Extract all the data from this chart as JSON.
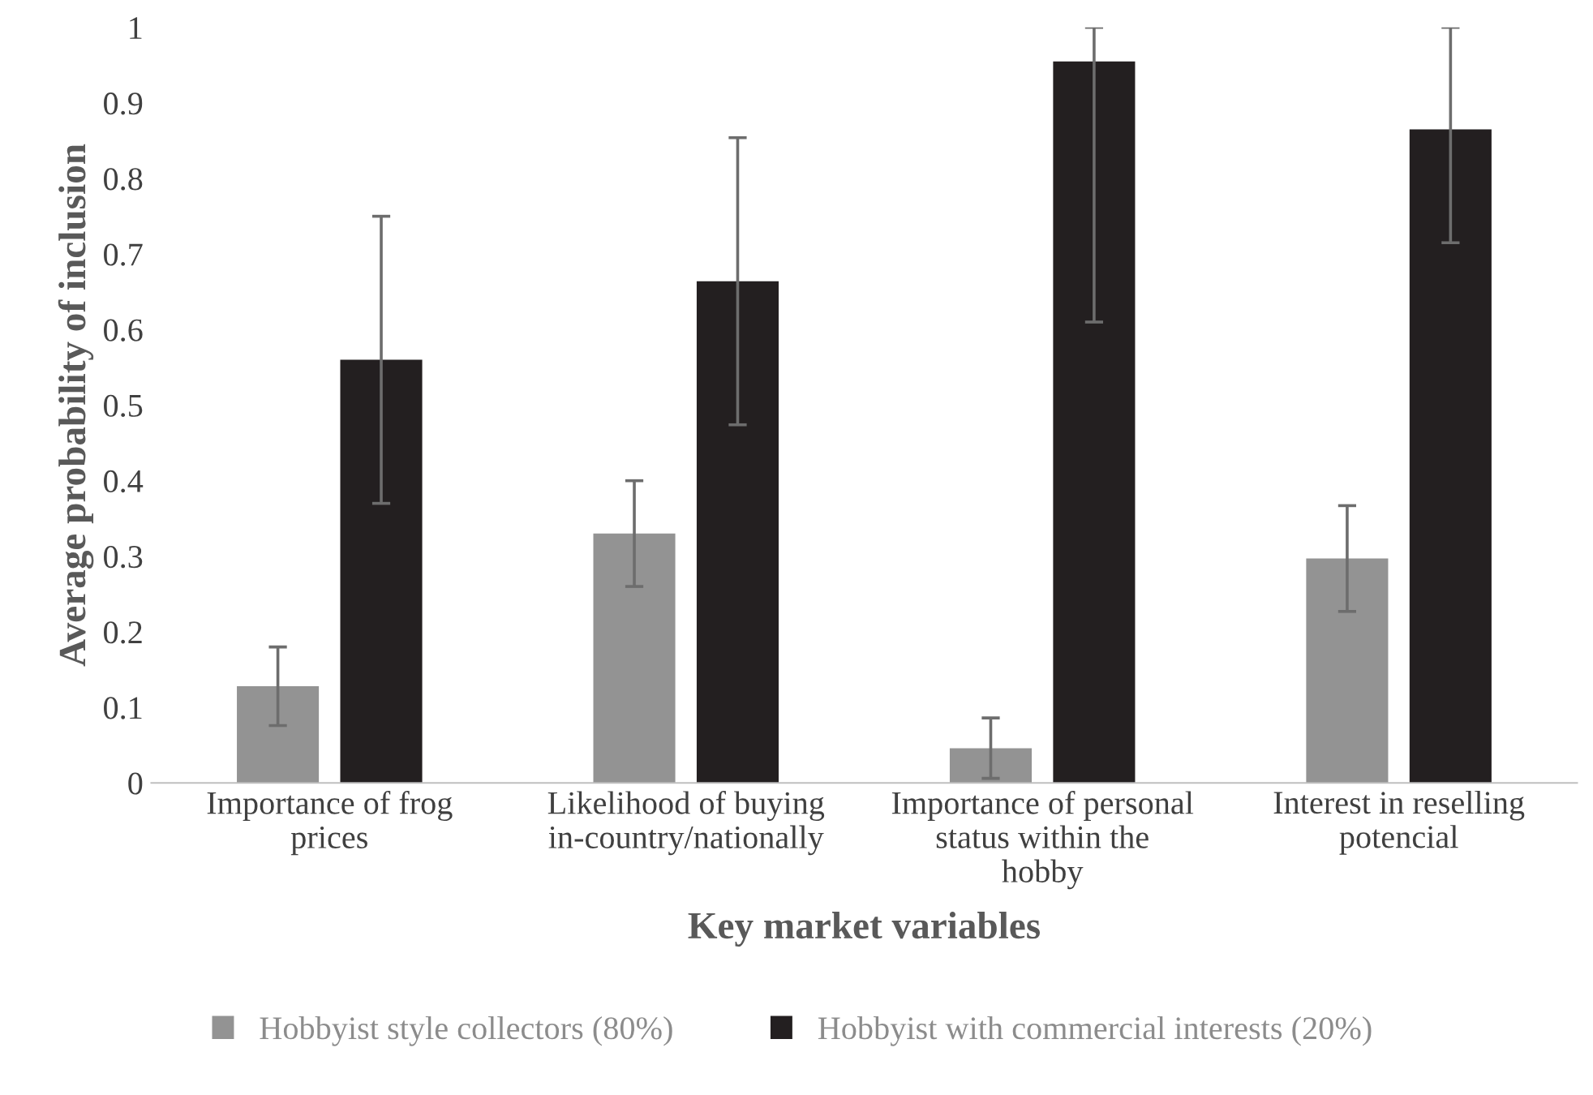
{
  "chart_data": {
    "type": "bar",
    "categories": [
      "Importance of frog\nprices",
      "Likelihood of buying\nin-country/nationally",
      "Importance of personal\nstatus within the\nhobby",
      "Interest in reselling\npotencial"
    ],
    "xlabel": "Key market variables",
    "ylabel": "Average probability of inclusion",
    "ylim": [
      0,
      1
    ],
    "yticks": [
      0,
      0.1,
      0.2,
      0.3,
      0.4,
      0.5,
      0.6,
      0.7,
      0.8,
      0.9,
      1
    ],
    "series": [
      {
        "name": "Hobbyist style collectors (80%)",
        "color": "#939393",
        "values": [
          0.128,
          0.33,
          0.046,
          0.297
        ],
        "errors": [
          0.052,
          0.07,
          0.04,
          0.07
        ]
      },
      {
        "name": "Hobbyist with commercial interests (20%)",
        "color": "#231f20",
        "values": [
          0.56,
          0.664,
          0.955,
          0.865
        ],
        "errors": [
          0.19,
          0.19,
          [
            0.61,
            1.0
          ],
          [
            0.715,
            1.0
          ]
        ]
      }
    ],
    "grid": false,
    "legend": "bottom"
  }
}
